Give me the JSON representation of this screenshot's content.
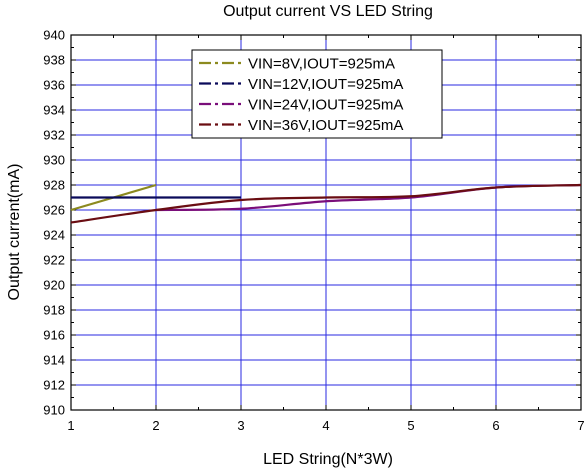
{
  "chart_data": {
    "type": "line",
    "title": "Output current VS LED String",
    "xlabel": "LED String(N*3W)",
    "ylabel": "Output current(mA)",
    "xlim": [
      1,
      7
    ],
    "ylim": [
      910,
      940
    ],
    "x_ticks": [
      1,
      2,
      3,
      4,
      5,
      6,
      7
    ],
    "y_ticks": [
      910,
      912,
      914,
      916,
      918,
      920,
      922,
      924,
      926,
      928,
      930,
      932,
      934,
      936,
      938,
      940
    ],
    "grid": true,
    "legend_position": "top-center",
    "series": [
      {
        "name": "VIN=8V,IOUT=925mA",
        "color": "#8c8a1f",
        "dash": "dash-dot",
        "points": [
          [
            1,
            926.0
          ],
          [
            2,
            928.0
          ]
        ]
      },
      {
        "name": "VIN=12V,IOUT=925mA",
        "color": "#0a0a5a",
        "dash": "dash-dot",
        "points": [
          [
            1,
            927.0
          ],
          [
            3,
            927.0
          ]
        ]
      },
      {
        "name": "VIN=24V,IOUT=925mA",
        "color": "#7a0e7a",
        "dash": "dash-dot",
        "points": [
          [
            2,
            926.0
          ],
          [
            3,
            926.1
          ],
          [
            4,
            926.7
          ],
          [
            5,
            927.0
          ],
          [
            6,
            927.8
          ],
          [
            7,
            928.0
          ]
        ]
      },
      {
        "name": "VIN=36V,IOUT=925mA",
        "color": "#6a0d12",
        "dash": "dash-dot",
        "points": [
          [
            1,
            925.0
          ],
          [
            2,
            926.0
          ],
          [
            3,
            926.8
          ],
          [
            4,
            927.0
          ],
          [
            5,
            927.1
          ],
          [
            6,
            927.8
          ],
          [
            7,
            928.0
          ]
        ]
      }
    ]
  }
}
